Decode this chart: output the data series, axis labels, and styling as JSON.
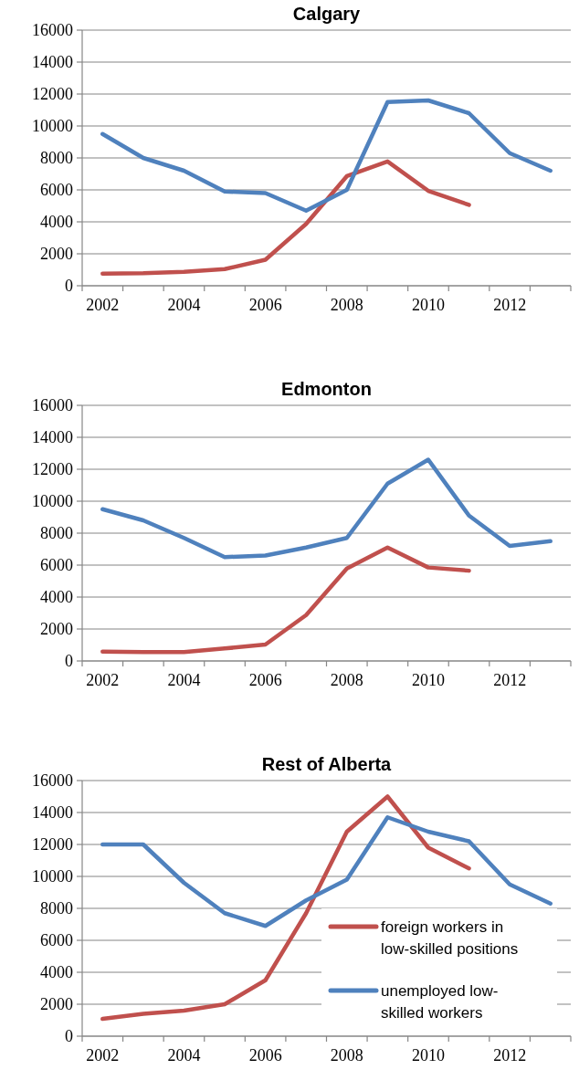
{
  "chart_data": [
    {
      "type": "line",
      "title": "Calgary",
      "categories": [
        "2002",
        null,
        "2004",
        null,
        "2006",
        null,
        "2008",
        null,
        "2010",
        null,
        "2012",
        null
      ],
      "ylim": [
        0,
        16000
      ],
      "yticks": [
        0,
        2000,
        4000,
        6000,
        8000,
        10000,
        12000,
        14000,
        16000
      ],
      "grid": "y",
      "line_style": "solid",
      "marker": "none",
      "series": [
        {
          "color": "#c0504d",
          "values": [
            760,
            780,
            870,
            1040,
            1630,
            3870,
            6860,
            7780,
            5940,
            5060,
            null,
            null
          ]
        },
        {
          "color": "#4f81bd",
          "values": [
            9500,
            8000,
            7200,
            5900,
            5800,
            4700,
            6000,
            11500,
            11600,
            10800,
            8300,
            7200
          ]
        }
      ]
    },
    {
      "type": "line",
      "title": "Edmonton",
      "categories": [
        "2002",
        null,
        "2004",
        null,
        "2006",
        null,
        "2008",
        null,
        "2010",
        null,
        "2012",
        null
      ],
      "ylim": [
        0,
        16000
      ],
      "yticks": [
        0,
        2000,
        4000,
        6000,
        8000,
        10000,
        12000,
        14000,
        16000
      ],
      "grid": "y",
      "line_style": "solid",
      "marker": "none",
      "series": [
        {
          "color": "#c0504d",
          "values": [
            580,
            560,
            560,
            780,
            1030,
            2870,
            5780,
            7100,
            5850,
            5650,
            null,
            null
          ]
        },
        {
          "color": "#4f81bd",
          "values": [
            9500,
            8800,
            7700,
            6500,
            6600,
            7100,
            7700,
            11100,
            12600,
            9100,
            7200,
            7500
          ]
        }
      ]
    },
    {
      "type": "line",
      "title": "Rest of Alberta",
      "categories": [
        "2002",
        null,
        "2004",
        null,
        "2006",
        null,
        "2008",
        null,
        "2010",
        null,
        "2012",
        null
      ],
      "ylim": [
        0,
        16000
      ],
      "yticks": [
        0,
        2000,
        4000,
        6000,
        8000,
        10000,
        12000,
        14000,
        16000
      ],
      "grid": "y",
      "line_style": "solid",
      "marker": "none",
      "legend": "bottom right",
      "series": [
        {
          "name": "foreign workers in low-skilled positions",
          "color": "#c0504d",
          "values": [
            1080,
            1400,
            1600,
            2000,
            3500,
            7700,
            12800,
            15000,
            11800,
            10500,
            null,
            null
          ]
        },
        {
          "name": "unemployed low-skilled workers",
          "color": "#4f81bd",
          "values": [
            12000,
            12000,
            9600,
            7700,
            6900,
            8500,
            9800,
            13700,
            12800,
            12200,
            9500,
            8300
          ]
        }
      ]
    }
  ]
}
